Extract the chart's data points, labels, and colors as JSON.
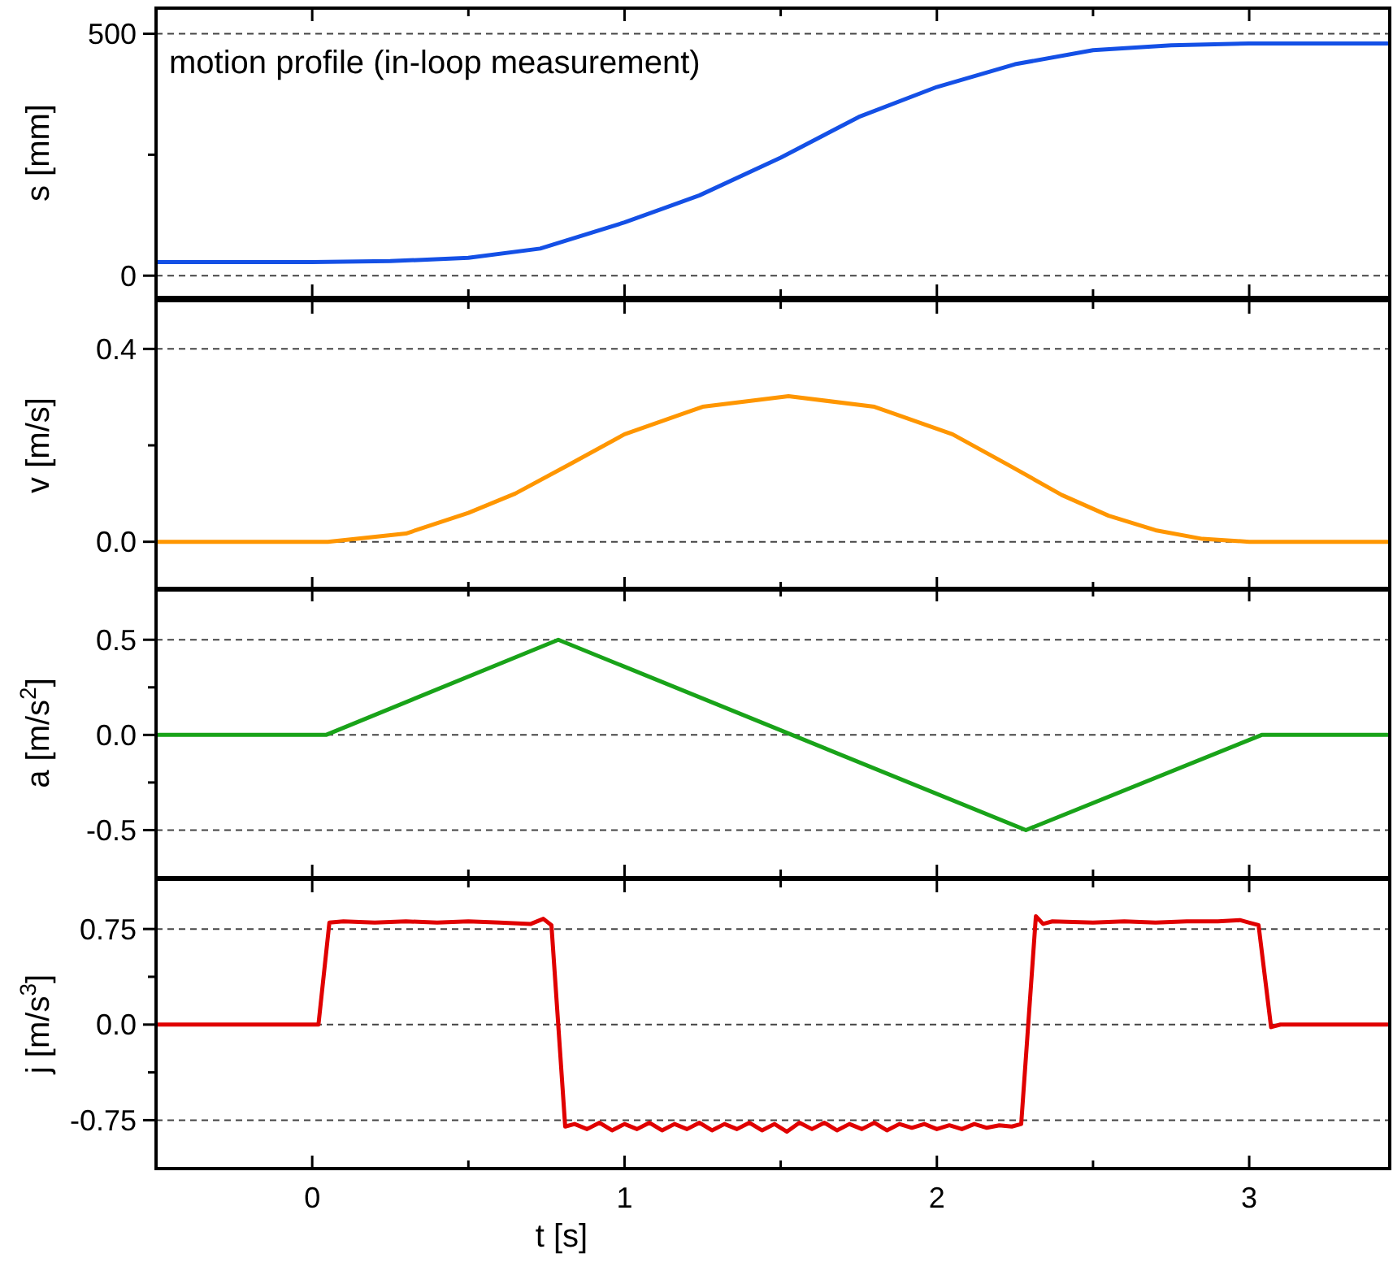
{
  "chart_data": [
    {
      "type": "line",
      "ylabel": "s [mm]",
      "annotations": [
        "motion profile (in-loop measurement)"
      ],
      "xlim": [
        -0.5,
        3.45
      ],
      "xticks": [
        {
          "value": 0,
          "label": null
        },
        {
          "value": 0.5,
          "label": null
        },
        {
          "value": 1,
          "label": null
        },
        {
          "value": 1.5,
          "label": null
        },
        {
          "value": 2,
          "label": null
        },
        {
          "value": 2.5,
          "label": null
        },
        {
          "value": 3,
          "label": null
        }
      ],
      "ylim": [
        -45,
        553
      ],
      "yticks": [
        0,
        {
          "value": 250,
          "label": null
        },
        500
      ],
      "grid": "y",
      "line_style": "solid",
      "tick_labels": "y",
      "series": [
        {
          "color": "#1450e6",
          "x": [
            -0.5,
            0,
            0.25,
            0.5,
            0.73,
            1.0,
            1.24,
            1.5,
            1.75,
            2.0,
            2.25,
            2.5,
            2.75,
            3.0,
            3.45
          ],
          "values": [
            28,
            28,
            30,
            37,
            56,
            110,
            166,
            244,
            328,
            390,
            437,
            466,
            476,
            480,
            480
          ]
        }
      ]
    },
    {
      "type": "line",
      "ylabel": "v [m/s]",
      "xlim": [
        -0.5,
        3.45
      ],
      "xticks": [
        {
          "value": 0,
          "label": null
        },
        {
          "value": 0.5,
          "label": null
        },
        {
          "value": 1,
          "label": null
        },
        {
          "value": 1.5,
          "label": null
        },
        {
          "value": 2,
          "label": null
        },
        {
          "value": 2.5,
          "label": null
        },
        {
          "value": 3,
          "label": null
        }
      ],
      "ylim": [
        -0.1,
        0.5
      ],
      "yticks": [
        {
          "value": 0,
          "label": "0.0"
        },
        {
          "value": 0.2,
          "label": null
        },
        0.4
      ],
      "grid": "y",
      "line_style": "solid",
      "tick_labels": "y",
      "series": [
        {
          "color": "#ff9600",
          "x": [
            -0.5,
            0.05,
            0.3,
            0.5,
            0.65,
            0.82,
            1.0,
            1.25,
            1.525,
            1.8,
            2.05,
            2.23,
            2.4,
            2.55,
            2.7,
            2.85,
            3.0,
            3.45
          ],
          "values": [
            0,
            0,
            0.017,
            0.06,
            0.1,
            0.159,
            0.223,
            0.28,
            0.302,
            0.28,
            0.223,
            0.159,
            0.097,
            0.054,
            0.024,
            0.006,
            0,
            0
          ]
        }
      ]
    },
    {
      "type": "line",
      "ylabel": "a [m/s$^{2}$]",
      "xlim": [
        -0.5,
        3.45
      ],
      "xticks": [
        {
          "value": 0,
          "label": null
        },
        {
          "value": 0.5,
          "label": null
        },
        {
          "value": 1,
          "label": null
        },
        {
          "value": 1.5,
          "label": null
        },
        {
          "value": 2,
          "label": null
        },
        {
          "value": 2.5,
          "label": null
        },
        {
          "value": 3,
          "label": null
        }
      ],
      "ylim": [
        -0.75,
        0.77
      ],
      "yticks": [
        -0.5,
        {
          "value": -0.25,
          "label": null
        },
        {
          "value": 0,
          "label": "0.0"
        },
        {
          "value": 0.25,
          "label": null
        },
        0.5
      ],
      "grid": "y",
      "line_style": "solid",
      "tick_labels": "y",
      "series": [
        {
          "color": "#19a319",
          "x": [
            -0.5,
            0.044,
            0.788,
            2.285,
            3.04,
            3.45
          ],
          "values": [
            0,
            0,
            0.5,
            -0.5,
            0,
            0
          ]
        }
      ]
    },
    {
      "type": "line",
      "xlabel": "t [s]",
      "ylabel": "j [m/s$^{3}$]",
      "xlim": [
        -0.5,
        3.45
      ],
      "xticks": [
        0,
        {
          "value": 0.5,
          "label": null
        },
        1,
        {
          "value": 1.5,
          "label": null
        },
        2,
        {
          "value": 2.5,
          "label": null
        },
        3
      ],
      "ylim": [
        -1.13,
        1.14
      ],
      "yticks": [
        -0.75,
        {
          "value": -0.375,
          "label": null
        },
        {
          "value": 0,
          "label": "0.0"
        },
        {
          "value": 0.375,
          "label": null
        },
        0.75
      ],
      "grid": "y",
      "line_style": "solid",
      "series": [
        {
          "color": "#e00000",
          "x": [
            -0.5,
            -0.3,
            -0.1,
            0.02,
            0.055,
            0.1,
            0.2,
            0.3,
            0.4,
            0.5,
            0.6,
            0.7,
            0.74,
            0.766,
            0.81,
            0.84,
            0.88,
            0.92,
            0.96,
            1.0,
            1.04,
            1.08,
            1.12,
            1.16,
            1.2,
            1.24,
            1.28,
            1.32,
            1.36,
            1.4,
            1.44,
            1.48,
            1.52,
            1.56,
            1.6,
            1.64,
            1.68,
            1.72,
            1.76,
            1.8,
            1.84,
            1.88,
            1.92,
            1.96,
            2.0,
            2.04,
            2.08,
            2.12,
            2.16,
            2.2,
            2.24,
            2.27,
            2.317,
            2.34,
            2.37,
            2.5,
            2.6,
            2.7,
            2.8,
            2.9,
            2.97,
            3.0,
            3.03,
            3.07,
            3.1,
            3.45
          ],
          "values": [
            0,
            0,
            0,
            0,
            0.8,
            0.81,
            0.8,
            0.81,
            0.8,
            0.81,
            0.8,
            0.79,
            0.83,
            0.78,
            -0.8,
            -0.78,
            -0.82,
            -0.77,
            -0.83,
            -0.78,
            -0.82,
            -0.77,
            -0.83,
            -0.78,
            -0.82,
            -0.77,
            -0.83,
            -0.78,
            -0.82,
            -0.77,
            -0.83,
            -0.78,
            -0.84,
            -0.77,
            -0.82,
            -0.77,
            -0.83,
            -0.78,
            -0.82,
            -0.77,
            -0.83,
            -0.78,
            -0.81,
            -0.78,
            -0.82,
            -0.79,
            -0.82,
            -0.78,
            -0.81,
            -0.79,
            -0.8,
            -0.78,
            0.85,
            0.79,
            0.81,
            0.8,
            0.81,
            0.8,
            0.81,
            0.81,
            0.82,
            0.8,
            0.78,
            -0.02,
            0,
            0
          ]
        }
      ]
    }
  ]
}
